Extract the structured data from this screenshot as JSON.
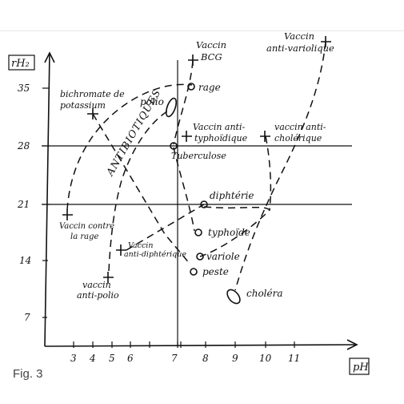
{
  "figure": {
    "caption": "Fig. 3",
    "y_axis_label": "rH₂",
    "x_axis_label": "pH",
    "y_ticks": [
      "35",
      "28",
      "21",
      "14",
      "7"
    ],
    "x_ticks": [
      "3",
      "4",
      "5",
      "6",
      "7",
      "8",
      "9",
      "10",
      "11"
    ],
    "zone_label": "ANTIBIOTIQUES"
  },
  "labels": {
    "vaccin_bcg_1": "Vaccin",
    "vaccin_bcg_2": "BCG",
    "vaccin_variolique_1": "Vaccin",
    "vaccin_variolique_2": "anti-variolique",
    "bichromate_1": "bichromate de",
    "bichromate_2": "potassium",
    "polio": "polio",
    "rage": "rage",
    "vaccin_typhoidique_1": "Vaccin anti-",
    "vaccin_typhoidique_2": "typhoïdique",
    "vaccin_cholerique_1": "vaccin anti-",
    "vaccin_cholerique_2": "cholérique",
    "tuberculose": "Tuberculose",
    "diphterie": "diphtérie",
    "vaccin_rage_1": "Vaccin contre",
    "vaccin_rage_2": "la rage",
    "typhoide": "typhoïde",
    "vaccin_diphterique_1": "Vaccin",
    "vaccin_diphterique_2": "anti-diphtérique",
    "variole": "variole",
    "peste": "peste",
    "vaccin_polio_1": "vaccin",
    "vaccin_polio_2": "anti-polio",
    "cholera": "choléra"
  }
}
